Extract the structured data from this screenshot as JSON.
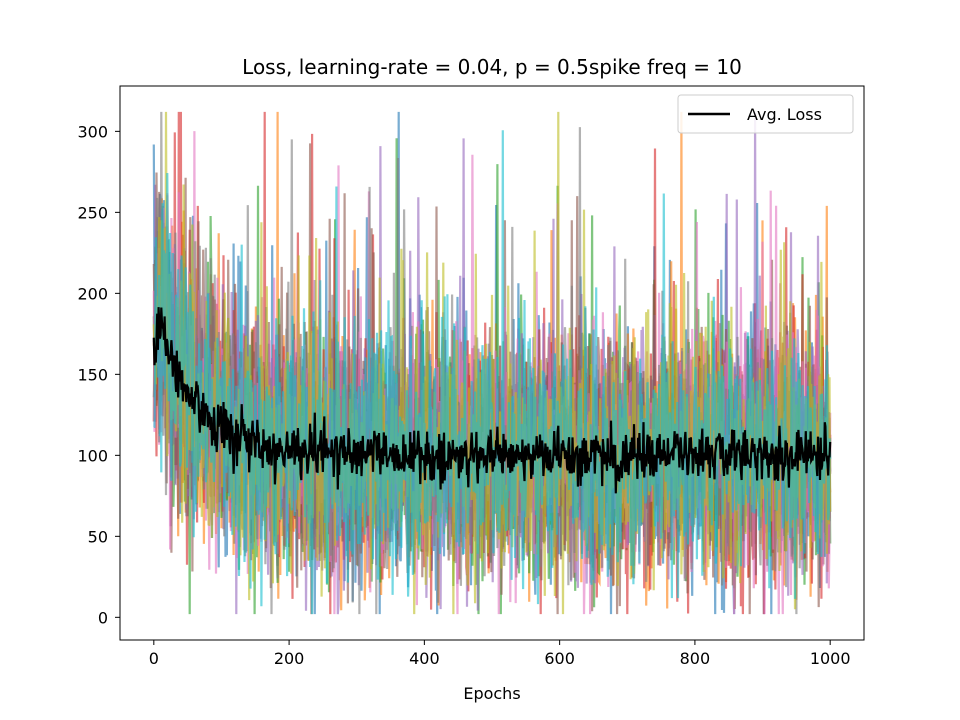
{
  "chart_data": {
    "type": "line",
    "title": "Loss, learning-rate = 0.04, p = 0.5spike freq = 10",
    "xlabel": "Epochs",
    "ylabel": "",
    "xlim": [
      -50,
      1050
    ],
    "ylim": [
      -14,
      328
    ],
    "xticks": [
      0,
      200,
      400,
      600,
      800,
      1000
    ],
    "yticks": [
      0,
      50,
      100,
      150,
      200,
      250,
      300
    ],
    "grid": false,
    "legend": {
      "position": "top-right",
      "entries": [
        "Avg. Loss"
      ]
    },
    "avg_loss_color": "#000000",
    "series_colors": [
      "#1f77b4",
      "#ff7f0e",
      "#2ca02c",
      "#d62728",
      "#9467bd",
      "#8c564b",
      "#e377c2",
      "#7f7f7f",
      "#bcbd22",
      "#17becf"
    ],
    "series_count": 10,
    "epochs": 1000,
    "avg_loss_trend": [
      {
        "x": 0,
        "y": 167
      },
      {
        "x": 10,
        "y": 190
      },
      {
        "x": 25,
        "y": 160
      },
      {
        "x": 50,
        "y": 135
      },
      {
        "x": 100,
        "y": 118
      },
      {
        "x": 150,
        "y": 108
      },
      {
        "x": 200,
        "y": 103
      },
      {
        "x": 300,
        "y": 100
      },
      {
        "x": 400,
        "y": 100
      },
      {
        "x": 500,
        "y": 100
      },
      {
        "x": 600,
        "y": 100
      },
      {
        "x": 700,
        "y": 100
      },
      {
        "x": 800,
        "y": 100
      },
      {
        "x": 900,
        "y": 100
      },
      {
        "x": 1000,
        "y": 98
      }
    ],
    "individual_runs": {
      "initial_mean": 167,
      "final_mean": 100,
      "typical_range": [
        30,
        210
      ],
      "max": 312,
      "min": 2
    }
  }
}
